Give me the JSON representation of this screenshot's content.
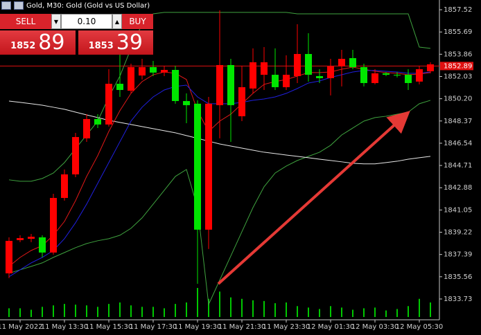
{
  "header": {
    "title": "Gold, M30:  Gold (Gold vs US Dollar)"
  },
  "trade_panel": {
    "sell": "SELL",
    "lot": "0.10",
    "buy": "BUY",
    "bid_prefix": "1852",
    "bid_pips": "89",
    "ask_prefix": "1853",
    "ask_pips": "39"
  },
  "chart_data": {
    "type": "candlestick",
    "categories": [
      null,
      "11 May 2022",
      null,
      null,
      null,
      "11 May 13:30",
      null,
      null,
      null,
      "11 May 15:30",
      null,
      null,
      null,
      "11 May 17:30",
      null,
      null,
      null,
      "11 May 19:30",
      null,
      null,
      null,
      "11 May 21:30",
      null,
      null,
      null,
      "11 May 23:30",
      null,
      null,
      null,
      "12 May 01:30",
      null,
      null,
      null,
      "12 May 03:30",
      null,
      null,
      null,
      "12 May 05:30",
      null
    ],
    "open": [
      1835.84,
      1838.57,
      1838.68,
      1838.8,
      1837.55,
      1842.04,
      1843.98,
      1846.94,
      1848.53,
      1848.08,
      1851.43,
      1850.86,
      1852.11,
      1852.8,
      1852.35,
      1852.57,
      1850.01,
      1849.79,
      1839.43,
      1849.67,
      1852.97,
      1848.76,
      1851.04,
      1852.17,
      1852.17,
      1851.15,
      1852.06,
      1853.88,
      1852.06,
      1851.89,
      1852.86,
      1853.54,
      1852.8,
      1851.49,
      1852.29,
      1852.17,
      1852.17,
      1851.61,
      1852.46
    ],
    "high": [
      1838.8,
      1838.97,
      1839.08,
      1838.97,
      1842.38,
      1844.38,
      1847.39,
      1848.93,
      1848.93,
      1852.63,
      1853.88,
      1853.08,
      1853.48,
      1853.31,
      1852.91,
      1852.91,
      1850.64,
      1850.07,
      1850.35,
      1857.47,
      1853.48,
      1852.91,
      1854.34,
      1854.45,
      1854.34,
      1853.77,
      1856.33,
      1855.59,
      1852.63,
      1853.48,
      1854.22,
      1854.22,
      1853.08,
      1852.63,
      1852.4,
      1852.4,
      1852.63,
      1852.91,
      1853.2
    ],
    "low": [
      1835.44,
      1838.4,
      1838.4,
      1837.15,
      1837.38,
      1841.82,
      1843.75,
      1846.65,
      1847.79,
      1847.91,
      1850.35,
      1850.64,
      1851.78,
      1852.06,
      1852.06,
      1849.79,
      1848.19,
      1834.98,
      1837.84,
      1846.94,
      1846.65,
      1848.36,
      1850.64,
      1850.92,
      1850.92,
      1850.92,
      1851.49,
      1851.61,
      1851.49,
      1850.47,
      1851.21,
      1852.63,
      1851.21,
      1851.38,
      1852.06,
      1851.95,
      1850.92,
      1851.38,
      1852.29
    ],
    "close": [
      1838.51,
      1838.74,
      1838.85,
      1837.55,
      1842.04,
      1843.98,
      1847.05,
      1848.53,
      1848.08,
      1851.43,
      1850.92,
      1852.8,
      1852.8,
      1852.35,
      1852.57,
      1850.01,
      1849.67,
      1839.43,
      1849.79,
      1852.97,
      1849.67,
      1851.15,
      1853.2,
      1853.2,
      1851.15,
      1852.17,
      1853.88,
      1852.17,
      1851.89,
      1852.86,
      1853.48,
      1852.8,
      1851.49,
      1852.29,
      1852.17,
      1852.11,
      1851.49,
      1852.63,
      1853.03
    ],
    "volumes": [
      12,
      12,
      10,
      14,
      16,
      18,
      17,
      16,
      14,
      18,
      20,
      16,
      14,
      14,
      12,
      18,
      20,
      40,
      25,
      35,
      27,
      25,
      23,
      22,
      19,
      20,
      15,
      13,
      11,
      15,
      13,
      10,
      12,
      13,
      9,
      11,
      15,
      25,
      20
    ],
    "up_color": "#ff0000",
    "down_color": "#00e600",
    "volume_color": "#00c800",
    "indicators": [
      {
        "color": "#3fa33f",
        "values": [
          1843.53,
          1843.41,
          1843.41,
          1843.64,
          1844.09,
          1844.95,
          1846.09,
          1847.22,
          1848.36,
          1850.35,
          1852.06,
          1854.34,
          1856.33,
          1857.18,
          1857.3,
          1857.3,
          1857.3,
          1857.3,
          1857.3,
          1857.3,
          1857.3,
          1857.3,
          1857.3,
          1857.3,
          1857.3,
          1857.3,
          1857.18,
          1857.18,
          1857.18,
          1857.18,
          1857.18,
          1857.18,
          1857.18,
          1857.18,
          1857.18,
          1857.18,
          1857.18,
          1854.45,
          1854.34
        ]
      },
      {
        "color": "#3fa33f",
        "values": [
          1835.84,
          1836.13,
          1836.41,
          1836.7,
          1837.15,
          1837.55,
          1837.95,
          1838.29,
          1838.52,
          1838.69,
          1838.97,
          1839.54,
          1840.4,
          1841.53,
          1842.67,
          1843.81,
          1844.38,
          1841.25,
          1833.28,
          1835.28,
          1837.27,
          1839.26,
          1841.25,
          1842.96,
          1844.09,
          1844.66,
          1845.12,
          1845.46,
          1845.8,
          1846.37,
          1847.22,
          1847.79,
          1848.36,
          1848.65,
          1848.76,
          1848.93,
          1849.1,
          1849.79,
          1850.07
        ]
      },
      {
        "color": "#e8e8e8",
        "values": [
          1850.01,
          1849.9,
          1849.79,
          1849.67,
          1849.5,
          1849.33,
          1849.1,
          1848.87,
          1848.65,
          1848.42,
          1848.25,
          1848.08,
          1847.91,
          1847.74,
          1847.57,
          1847.4,
          1847.17,
          1846.94,
          1846.71,
          1846.48,
          1846.31,
          1846.14,
          1845.97,
          1845.8,
          1845.69,
          1845.57,
          1845.46,
          1845.35,
          1845.23,
          1845.12,
          1845.01,
          1844.89,
          1844.84,
          1844.84,
          1844.95,
          1845.06,
          1845.23,
          1845.35,
          1845.46
        ]
      },
      {
        "color": "#e01818",
        "values": [
          1836.41,
          1837.15,
          1837.72,
          1838.12,
          1838.97,
          1840.11,
          1841.82,
          1843.81,
          1845.52,
          1847.51,
          1849.22,
          1850.64,
          1851.61,
          1852.17,
          1852.4,
          1852.29,
          1851.78,
          1849.22,
          1847.51,
          1848.36,
          1848.93,
          1849.79,
          1850.64,
          1851.38,
          1851.61,
          1851.78,
          1852.06,
          1852.35,
          1852.35,
          1852.4,
          1852.63,
          1852.8,
          1852.63,
          1852.46,
          1852.35,
          1852.29,
          1852.17,
          1852.23,
          1852.35
        ]
      },
      {
        "color": "#2020e0",
        "values": [
          1835.56,
          1836.13,
          1836.7,
          1837.15,
          1837.72,
          1838.69,
          1840.0,
          1841.53,
          1843.24,
          1844.95,
          1846.66,
          1848.36,
          1849.5,
          1850.35,
          1850.92,
          1851.21,
          1851.32,
          1850.35,
          1849.79,
          1849.79,
          1849.79,
          1849.9,
          1850.07,
          1850.18,
          1850.35,
          1850.64,
          1851.04,
          1851.49,
          1851.66,
          1851.95,
          1852.17,
          1852.4,
          1852.52,
          1852.52,
          1852.46,
          1852.4,
          1852.29,
          1852.29,
          1852.4
        ]
      }
    ],
    "current_price": 1852.89,
    "current_price_color": "#e01010",
    "ylim": [
      1832.02,
      1858.32
    ],
    "yticks": [
      1857.52,
      1855.69,
      1853.86,
      1852.03,
      {
        "value": 1850.2,
        "label": "1850.20"
      },
      1848.37,
      1846.54,
      1844.71,
      1842.88,
      1841.05,
      1839.22,
      1837.39,
      1835.56,
      1833.73
    ]
  }
}
